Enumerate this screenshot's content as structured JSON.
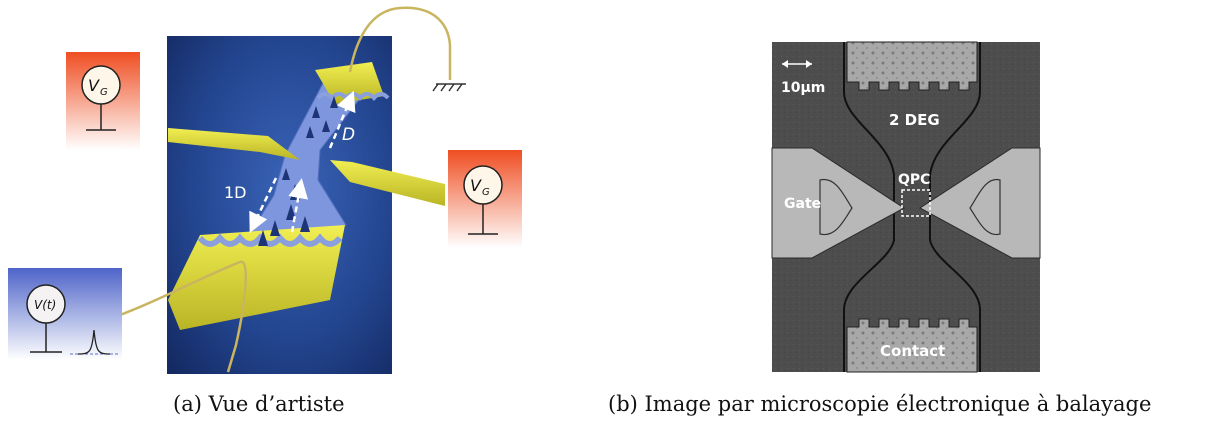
{
  "figure": {
    "panel_a": {
      "caption": "(a) Vue d’artiste",
      "labels": {
        "vg_left": "V",
        "vg_left_sub": "G",
        "vg_right": "V",
        "vg_right_sub": "G",
        "vt_main": "V(",
        "vt_t": "t",
        "vt_close": ")",
        "label_1d": "1D",
        "label_d": "D"
      }
    },
    "panel_b": {
      "caption": "(b) Image par microscopie électronique à balayage",
      "labels": {
        "scale": "10µm",
        "two_deg": "2 DEG",
        "qpc": "QPC",
        "gate": "Gate",
        "contact": "Contact"
      }
    },
    "colors": {
      "gate_yellow": "#e4e23a",
      "vg_orange": "#ef5a2a",
      "vt_blue": "#5a6fd0",
      "device_blue": "#7f99e0",
      "background_navy": "#1f3d86"
    }
  }
}
